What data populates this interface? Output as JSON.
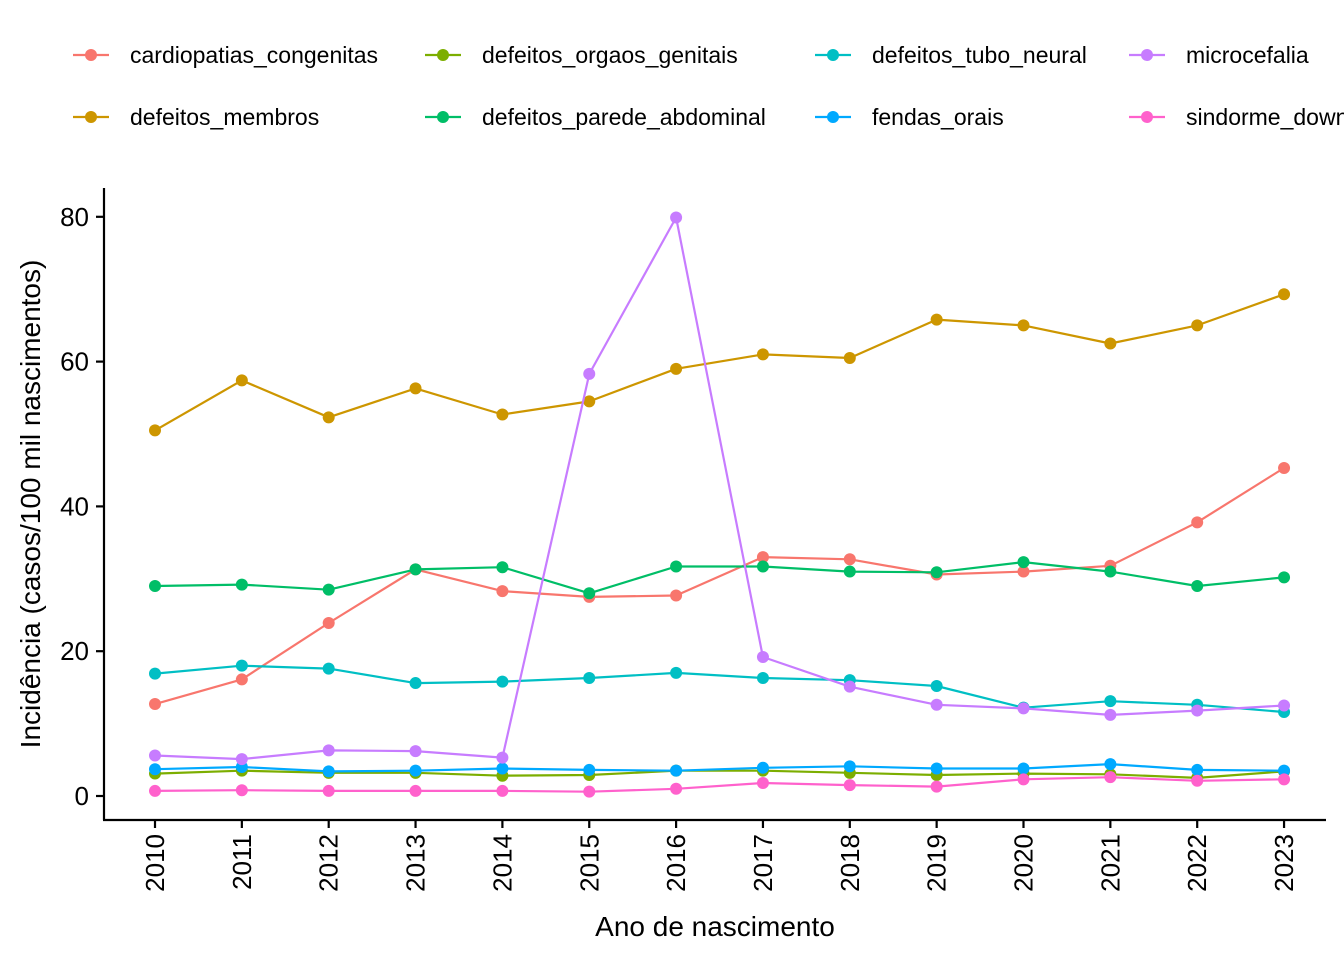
{
  "chart_data": {
    "type": "line",
    "title": "",
    "xlabel": "Ano de nascimento",
    "ylabel": "Incidência (casos/100 mil nascimentos)",
    "x": [
      2010,
      2011,
      2012,
      2013,
      2014,
      2015,
      2016,
      2017,
      2018,
      2019,
      2020,
      2021,
      2022,
      2023
    ],
    "x_tick_labels": [
      "2010",
      "2011",
      "2012",
      "2013",
      "2014",
      "2015",
      "2016",
      "2017",
      "2018",
      "2019",
      "2020",
      "2021",
      "2022",
      "2023"
    ],
    "y_ticks": [
      0,
      20,
      40,
      60,
      80
    ],
    "y_tick_labels": [
      "0",
      "20",
      "40",
      "60",
      "80"
    ],
    "ylim": [
      -3.2,
      84
    ],
    "x_tick_label_orientation": "vertical",
    "grid": false,
    "legend_position": "top",
    "series": [
      {
        "name": "cardiopatias_congenitas",
        "color": "#F8766D",
        "values": [
          12.7,
          16.1,
          23.9,
          31.3,
          28.3,
          27.5,
          27.7,
          33.0,
          32.7,
          30.6,
          31.0,
          31.8,
          37.8,
          45.3
        ]
      },
      {
        "name": "defeitos_membros",
        "color": "#CD9600",
        "values": [
          50.5,
          57.4,
          52.3,
          56.3,
          52.7,
          54.5,
          59.0,
          61.0,
          60.5,
          65.8,
          65.0,
          62.5,
          65.0,
          69.3
        ]
      },
      {
        "name": "defeitos_orgaos_genitais",
        "color": "#7CAE00",
        "values": [
          3.1,
          3.5,
          3.2,
          3.2,
          2.8,
          2.9,
          3.5,
          3.5,
          3.2,
          2.9,
          3.1,
          3.0,
          2.5,
          3.4
        ]
      },
      {
        "name": "defeitos_parede_abdominal",
        "color": "#00BE67",
        "values": [
          29.0,
          29.2,
          28.5,
          31.3,
          31.6,
          28.0,
          31.7,
          31.7,
          31.0,
          30.9,
          32.3,
          31.0,
          29.0,
          30.2
        ]
      },
      {
        "name": "defeitos_tubo_neural",
        "color": "#00BFC4",
        "values": [
          16.9,
          18.0,
          17.6,
          15.6,
          15.8,
          16.3,
          17.0,
          16.3,
          16.0,
          15.2,
          12.2,
          13.1,
          12.6,
          11.6
        ]
      },
      {
        "name": "fendas_orais",
        "color": "#00A9FF",
        "values": [
          3.7,
          4.0,
          3.4,
          3.5,
          3.8,
          3.6,
          3.5,
          3.9,
          4.1,
          3.8,
          3.8,
          4.4,
          3.6,
          3.5
        ]
      },
      {
        "name": "microcefalia",
        "color": "#C77CFF",
        "values": [
          5.6,
          5.1,
          6.3,
          6.2,
          5.3,
          58.3,
          79.9,
          19.2,
          15.1,
          12.6,
          12.1,
          11.2,
          11.8,
          12.5
        ]
      },
      {
        "name": "sindorme_down",
        "color": "#FF61CC",
        "values": [
          0.7,
          0.8,
          0.7,
          0.7,
          0.7,
          0.6,
          1.0,
          1.8,
          1.5,
          1.3,
          2.3,
          2.6,
          2.1,
          2.3
        ]
      }
    ]
  }
}
